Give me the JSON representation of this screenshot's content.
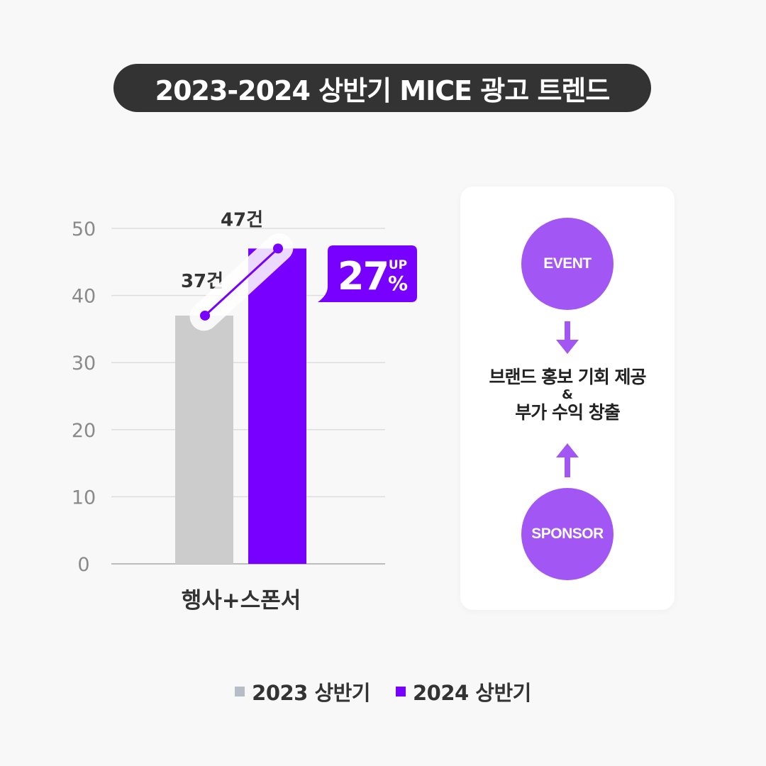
{
  "title": "2023-2024 상반기 MICE 광고 트렌드",
  "chart_data": {
    "type": "bar",
    "categories": [
      "행사+스폰서"
    ],
    "series": [
      {
        "name": "2023 상반기",
        "values": [
          37
        ],
        "label": "37건",
        "color": "#cccccc"
      },
      {
        "name": "2024 상반기",
        "values": [
          47
        ],
        "label": "47건",
        "color": "#7800ff"
      }
    ],
    "yticks": [
      "0",
      "10",
      "20",
      "30",
      "40",
      "50"
    ],
    "ylim": [
      0,
      50
    ],
    "grid": true,
    "legend_position": "bottom",
    "badge": {
      "number": "27",
      "up": "UP",
      "percent": "%"
    }
  },
  "card": {
    "top_circle": "EVENT",
    "bottom_circle": "SPONSOR",
    "line1": "브랜드 홍보 기회 제공",
    "amp": "&",
    "line2": "부가 수익 창출",
    "accent": "#a257f5"
  },
  "legend": [
    {
      "label": "2023 상반기",
      "color": "#b8bcc6"
    },
    {
      "label": "2024 상반기",
      "color": "#7800ff"
    }
  ]
}
